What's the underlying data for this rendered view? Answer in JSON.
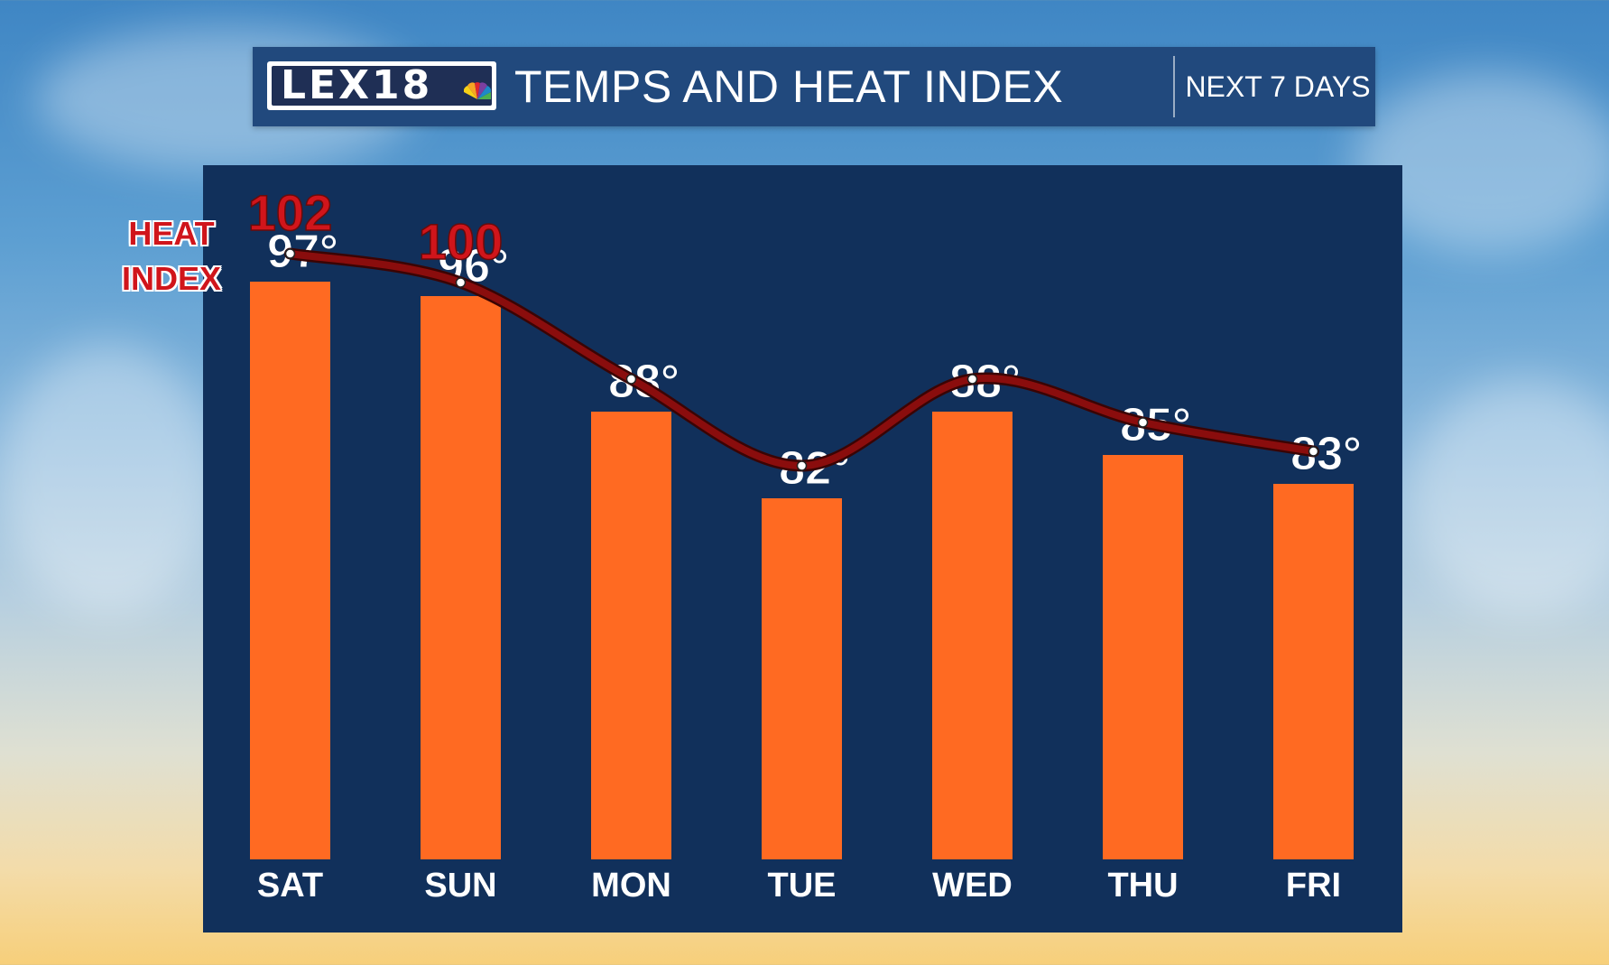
{
  "header": {
    "logo_text": "LEX18",
    "title": "TEMPS AND HEAT INDEX",
    "subtitle": "NEXT 7 DAYS"
  },
  "heat_index_label": "HEAT\nINDEX",
  "colors": {
    "bar": "#ff6a22",
    "panel": "#11305b",
    "header": "#21497d",
    "heat_line": "#8a0d0d",
    "heat_text": "#d0151b",
    "day_label": "#ffffff"
  },
  "chart_data": {
    "type": "bar",
    "categories": [
      "SAT",
      "SUN",
      "MON",
      "TUE",
      "WED",
      "THU",
      "FRI"
    ],
    "series": [
      {
        "values": [
          97,
          96,
          88,
          82,
          88,
          85,
          83
        ]
      },
      {
        "values": [
          102,
          100,
          null,
          null,
          null,
          null,
          null
        ]
      }
    ],
    "bar_labels": [
      "97°",
      "96°",
      "88°",
      "82°",
      "88°",
      "85°",
      "83°"
    ],
    "heat_index_labels": [
      "102",
      "100",
      "",
      "",
      "",
      "",
      ""
    ],
    "title": "TEMPS AND HEAT INDEX",
    "xlabel": "",
    "ylabel": "",
    "grid": false,
    "legend": "none"
  }
}
